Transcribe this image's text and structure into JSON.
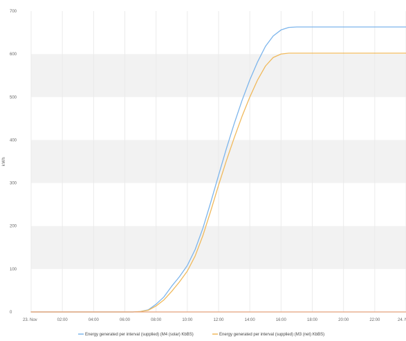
{
  "chart_data": {
    "type": "line",
    "ylabel": "kWh",
    "ylim": [
      0,
      700
    ],
    "yticks": [
      0,
      100,
      200,
      300,
      400,
      500,
      600,
      700
    ],
    "x_tick_labels": [
      "23. Nov",
      "02:00",
      "04:00",
      "06:00",
      "08:00",
      "10:00",
      "12:00",
      "14:00",
      "16:00",
      "18:00",
      "20:00",
      "22:00",
      "24. Nov"
    ],
    "xlim_hours": [
      0,
      24
    ],
    "grid": "horizontal alternating bands",
    "legend_position": "bottom",
    "series": [
      {
        "name": "Energy generated per interval (supplied) (M4 (solar) KbBS)",
        "color": "#7cb5ec",
        "x": [
          0,
          6.5,
          7,
          7.5,
          8,
          8.5,
          9,
          9.5,
          10,
          10.5,
          11,
          11.5,
          12,
          12.5,
          13,
          13.5,
          14,
          14.5,
          15,
          15.5,
          16,
          16.5,
          17,
          18,
          24
        ],
        "values": [
          0,
          0,
          1,
          5,
          18,
          35,
          60,
          82,
          108,
          145,
          195,
          255,
          318,
          380,
          438,
          492,
          540,
          582,
          618,
          642,
          656,
          662,
          663,
          663,
          663
        ]
      },
      {
        "name": "Energy generated per interval (supplied) (M3 (net) KbBS)",
        "color": "#f0b95b",
        "x": [
          0,
          6.5,
          7,
          7.5,
          8,
          8.5,
          9,
          9.5,
          10,
          10.5,
          11,
          11.5,
          12,
          12.5,
          13,
          13.5,
          14,
          14.5,
          15,
          15.5,
          16,
          16.5,
          17,
          18,
          24
        ],
        "values": [
          0,
          0,
          1,
          4,
          14,
          28,
          48,
          70,
          95,
          130,
          178,
          235,
          295,
          352,
          405,
          455,
          500,
          540,
          572,
          592,
          600,
          602,
          602,
          602,
          602
        ]
      },
      {
        "name": "",
        "color": "#e4a07a",
        "x": [
          0,
          24
        ],
        "values": [
          0,
          0
        ]
      }
    ]
  }
}
